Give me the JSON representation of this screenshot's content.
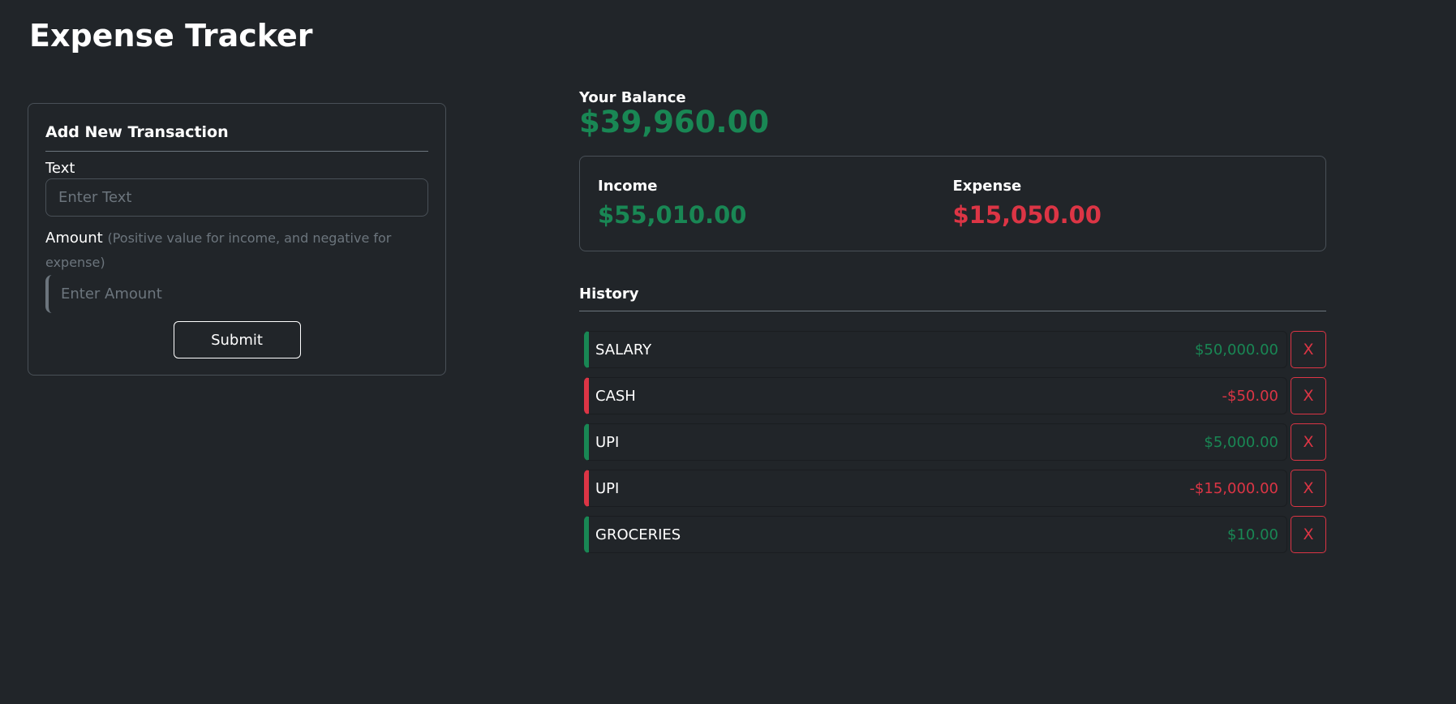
{
  "title": "Expense Tracker",
  "form": {
    "heading": "Add New Transaction",
    "text_label": "Text",
    "text_placeholder": "Enter Text",
    "amount_label": "Amount",
    "amount_hint": "(Positive value for income, and negative for expense)",
    "amount_placeholder": "Enter Amount",
    "submit": "Submit"
  },
  "balance": {
    "label": "Your Balance",
    "value": "$39,960.00"
  },
  "income": {
    "label": "Income",
    "value": "$55,010.00"
  },
  "expense": {
    "label": "Expense",
    "value": "$15,050.00"
  },
  "history": {
    "label": "History",
    "delete_label": "X",
    "items": [
      {
        "text": "SALARY",
        "amount": "$50,000.00",
        "type": "income"
      },
      {
        "text": "CASH",
        "amount": "-$50.00",
        "type": "expense"
      },
      {
        "text": "UPI",
        "amount": "$5,000.00",
        "type": "income"
      },
      {
        "text": "UPI",
        "amount": "-$15,000.00",
        "type": "expense"
      },
      {
        "text": "GROCERIES",
        "amount": "$10.00",
        "type": "income"
      }
    ]
  },
  "colors": {
    "income": "#198754",
    "expense": "#dc3545",
    "background": "#212529"
  }
}
